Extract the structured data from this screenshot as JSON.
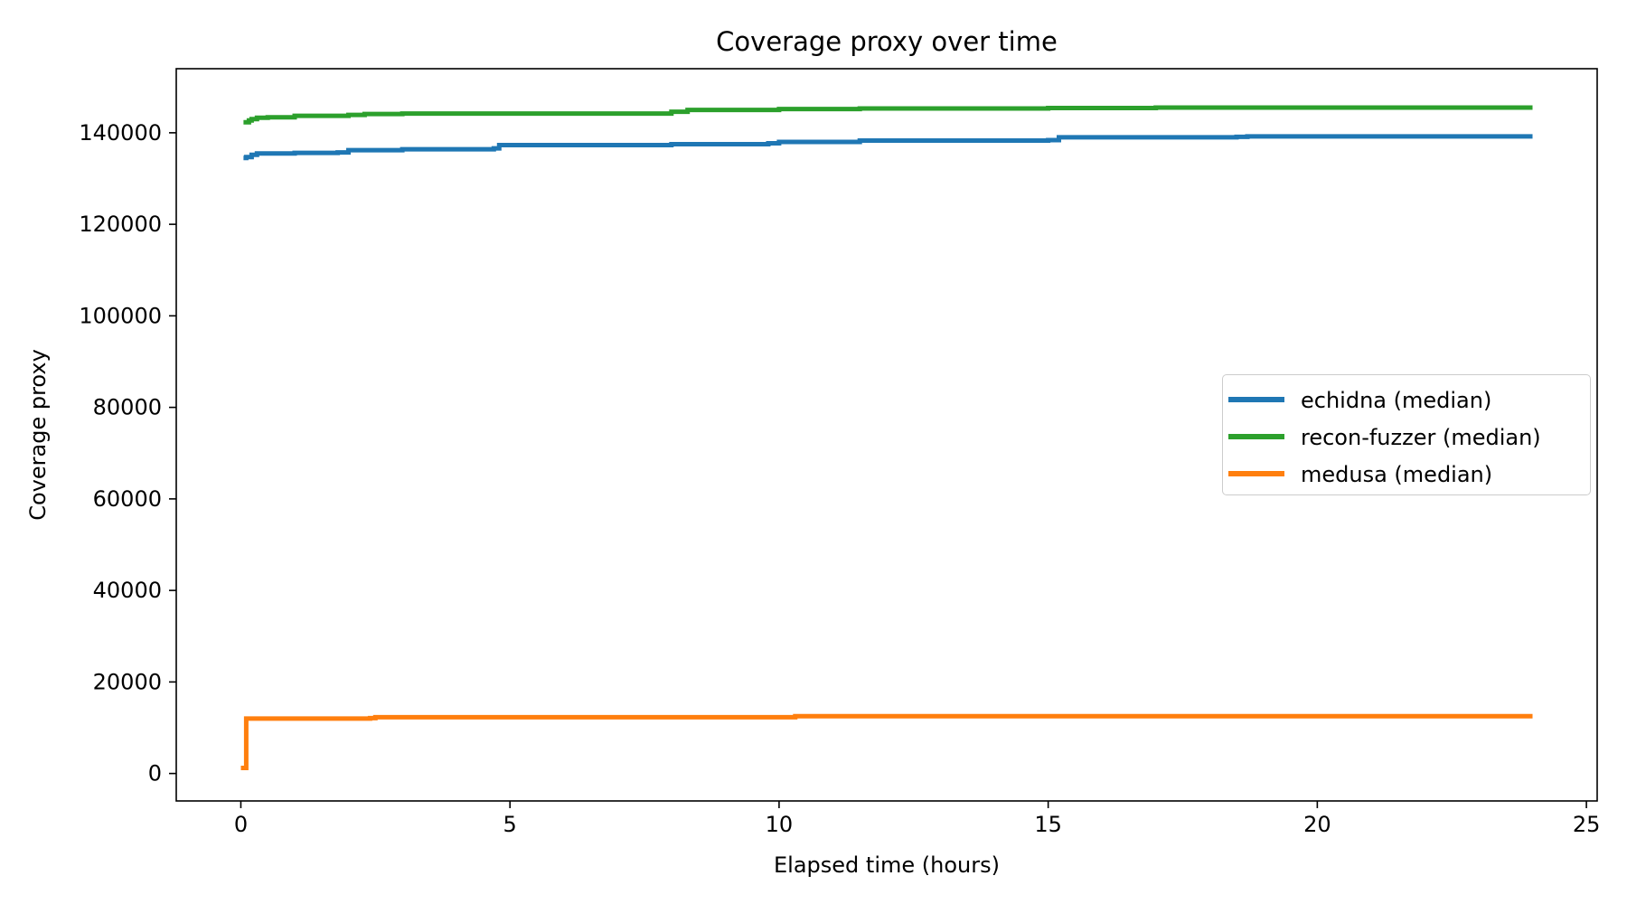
{
  "chart_data": {
    "type": "line",
    "title": "Coverage proxy over time",
    "xlabel": "Elapsed time (hours)",
    "ylabel": "Coverage proxy",
    "xlim": [
      -1.2,
      25.2
    ],
    "ylim": [
      -6000,
      154000
    ],
    "xticks": [
      0,
      5,
      10,
      15,
      20,
      25
    ],
    "yticks": [
      0,
      20000,
      40000,
      60000,
      80000,
      100000,
      120000,
      140000
    ],
    "grid": false,
    "legend_position": "center-right",
    "series": [
      {
        "name": "echidna (median)",
        "color": "#1f77b4",
        "x": [
          0.05,
          0.1,
          0.2,
          0.3,
          0.5,
          1.0,
          1.8,
          2.0,
          3.0,
          4.7,
          4.8,
          8.0,
          9.8,
          10.0,
          11.5,
          15.0,
          15.2,
          18.5,
          18.7,
          24.0
        ],
        "y": [
          134500,
          134700,
          135200,
          135500,
          135500,
          135600,
          135700,
          136200,
          136400,
          136600,
          137300,
          137500,
          137700,
          138000,
          138300,
          138400,
          139000,
          139100,
          139200,
          139200
        ]
      },
      {
        "name": "recon-fuzzer (median)",
        "color": "#2ca02c",
        "x": [
          0.05,
          0.15,
          0.2,
          0.3,
          0.5,
          1.0,
          2.0,
          2.3,
          3.0,
          5.0,
          8.0,
          8.3,
          10.0,
          11.5,
          15.0,
          17.0,
          24.0
        ],
        "y": [
          142300,
          142700,
          143000,
          143300,
          143400,
          143700,
          143900,
          144100,
          144200,
          144200,
          144600,
          145000,
          145200,
          145300,
          145400,
          145500,
          145500
        ]
      },
      {
        "name": "medusa (median)",
        "color": "#ff7f0e",
        "x": [
          0.0,
          0.09,
          0.1,
          0.5,
          1.0,
          2.4,
          2.5,
          5.0,
          10.0,
          10.3,
          15.0,
          24.0
        ],
        "y": [
          1200,
          1200,
          12000,
          12000,
          12000,
          12100,
          12300,
          12300,
          12300,
          12500,
          12500,
          12500
        ]
      }
    ]
  }
}
